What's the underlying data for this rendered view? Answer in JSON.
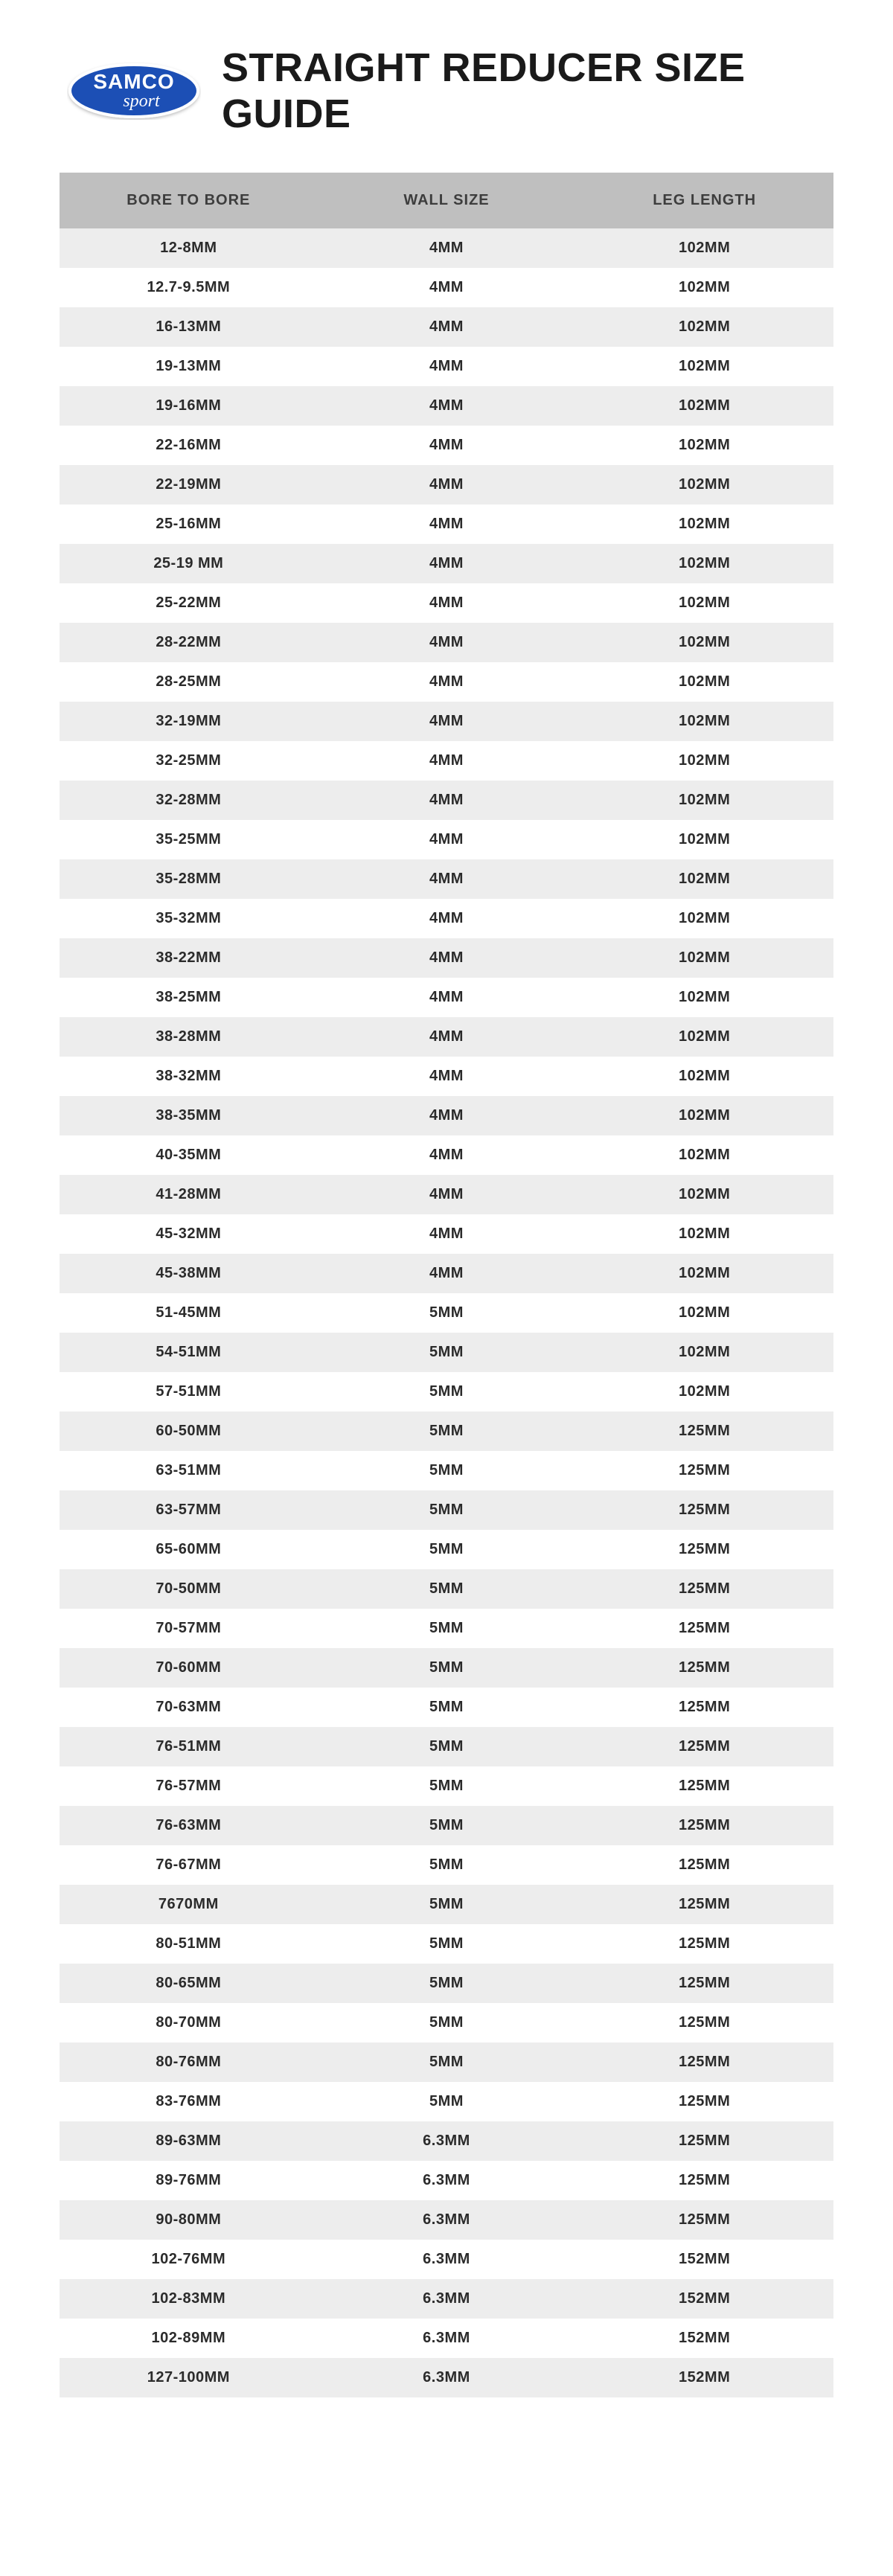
{
  "logo": {
    "brand_top": "SAMCO",
    "brand_bottom": "sport",
    "bg_color": "#1a4fb5",
    "border_color": "#ffffff",
    "text_color": "#ffffff"
  },
  "title": "STRAIGHT REDUCER SIZE GUIDE",
  "table": {
    "header_bg": "#bfbfbf",
    "header_fg": "#3d3d3d",
    "row_odd_bg": "#ededed",
    "row_even_bg": "#ffffff",
    "cell_fg": "#2b2b2b",
    "header_fontsize": 20,
    "cell_fontsize": 20,
    "columns": [
      "BORE TO BORE",
      "WALL SIZE",
      "LEG LENGTH"
    ],
    "rows": [
      [
        "12-8MM",
        "4MM",
        "102MM"
      ],
      [
        "12.7-9.5MM",
        "4MM",
        "102MM"
      ],
      [
        "16-13MM",
        "4MM",
        "102MM"
      ],
      [
        "19-13MM",
        "4MM",
        "102MM"
      ],
      [
        "19-16MM",
        "4MM",
        "102MM"
      ],
      [
        "22-16MM",
        "4MM",
        "102MM"
      ],
      [
        "22-19MM",
        "4MM",
        "102MM"
      ],
      [
        "25-16MM",
        "4MM",
        "102MM"
      ],
      [
        "25-19 MM",
        "4MM",
        "102MM"
      ],
      [
        "25-22MM",
        "4MM",
        "102MM"
      ],
      [
        "28-22MM",
        "4MM",
        "102MM"
      ],
      [
        "28-25MM",
        "4MM",
        "102MM"
      ],
      [
        "32-19MM",
        "4MM",
        "102MM"
      ],
      [
        "32-25MM",
        "4MM",
        "102MM"
      ],
      [
        "32-28MM",
        "4MM",
        "102MM"
      ],
      [
        "35-25MM",
        "4MM",
        "102MM"
      ],
      [
        "35-28MM",
        "4MM",
        "102MM"
      ],
      [
        "35-32MM",
        "4MM",
        "102MM"
      ],
      [
        "38-22MM",
        "4MM",
        "102MM"
      ],
      [
        "38-25MM",
        "4MM",
        "102MM"
      ],
      [
        "38-28MM",
        "4MM",
        "102MM"
      ],
      [
        "38-32MM",
        "4MM",
        "102MM"
      ],
      [
        "38-35MM",
        "4MM",
        "102MM"
      ],
      [
        "40-35MM",
        "4MM",
        "102MM"
      ],
      [
        "41-28MM",
        "4MM",
        "102MM"
      ],
      [
        "45-32MM",
        "4MM",
        "102MM"
      ],
      [
        "45-38MM",
        "4MM",
        "102MM"
      ],
      [
        "51-45MM",
        "5MM",
        "102MM"
      ],
      [
        "54-51MM",
        "5MM",
        "102MM"
      ],
      [
        "57-51MM",
        "5MM",
        "102MM"
      ],
      [
        "60-50MM",
        "5MM",
        "125MM"
      ],
      [
        "63-51MM",
        "5MM",
        "125MM"
      ],
      [
        "63-57MM",
        "5MM",
        "125MM"
      ],
      [
        "65-60MM",
        "5MM",
        "125MM"
      ],
      [
        "70-50MM",
        "5MM",
        "125MM"
      ],
      [
        "70-57MM",
        "5MM",
        "125MM"
      ],
      [
        "70-60MM",
        "5MM",
        "125MM"
      ],
      [
        "70-63MM",
        "5MM",
        "125MM"
      ],
      [
        "76-51MM",
        "5MM",
        "125MM"
      ],
      [
        "76-57MM",
        "5MM",
        "125MM"
      ],
      [
        "76-63MM",
        "5MM",
        "125MM"
      ],
      [
        "76-67MM",
        "5MM",
        "125MM"
      ],
      [
        "7670MM",
        "5MM",
        "125MM"
      ],
      [
        "80-51MM",
        "5MM",
        "125MM"
      ],
      [
        "80-65MM",
        "5MM",
        "125MM"
      ],
      [
        "80-70MM",
        "5MM",
        "125MM"
      ],
      [
        "80-76MM",
        "5MM",
        "125MM"
      ],
      [
        "83-76MM",
        "5MM",
        "125MM"
      ],
      [
        "89-63MM",
        "6.3MM",
        "125MM"
      ],
      [
        "89-76MM",
        "6.3MM",
        "125MM"
      ],
      [
        "90-80MM",
        "6.3MM",
        "125MM"
      ],
      [
        "102-76MM",
        "6.3MM",
        "152MM"
      ],
      [
        "102-83MM",
        "6.3MM",
        "152MM"
      ],
      [
        "102-89MM",
        "6.3MM",
        "152MM"
      ],
      [
        "127-100MM",
        "6.3MM",
        "152MM"
      ]
    ]
  }
}
